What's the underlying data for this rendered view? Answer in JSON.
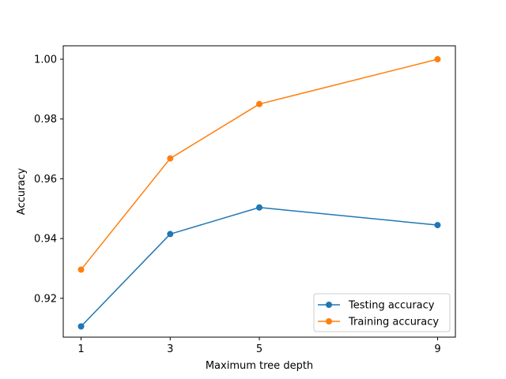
{
  "chart_data": {
    "type": "line",
    "title": "",
    "xlabel": "Maximum tree depth",
    "ylabel": "Accuracy",
    "x": [
      1,
      3,
      5,
      9
    ],
    "x_ticks": [
      1,
      3,
      5,
      9
    ],
    "x_tick_labels": [
      "1",
      "3",
      "5",
      "9"
    ],
    "xlim": [
      0.6,
      9.4
    ],
    "ylim": [
      0.907,
      1.0045
    ],
    "y_ticks": [
      0.92,
      0.94,
      0.96,
      0.98,
      1.0
    ],
    "y_tick_labels": [
      "0.92",
      "0.94",
      "0.96",
      "0.98",
      "1.00"
    ],
    "grid": false,
    "legend_position": "lower-right",
    "series": [
      {
        "name": "Testing accuracy",
        "values": [
          0.9106,
          0.9415,
          0.9504,
          0.9445
        ],
        "color": "#1f77b4",
        "marker": "circle"
      },
      {
        "name": "Training accuracy",
        "values": [
          0.9296,
          0.9668,
          0.985,
          1.0
        ],
        "color": "#ff7f0e",
        "marker": "circle"
      }
    ]
  }
}
